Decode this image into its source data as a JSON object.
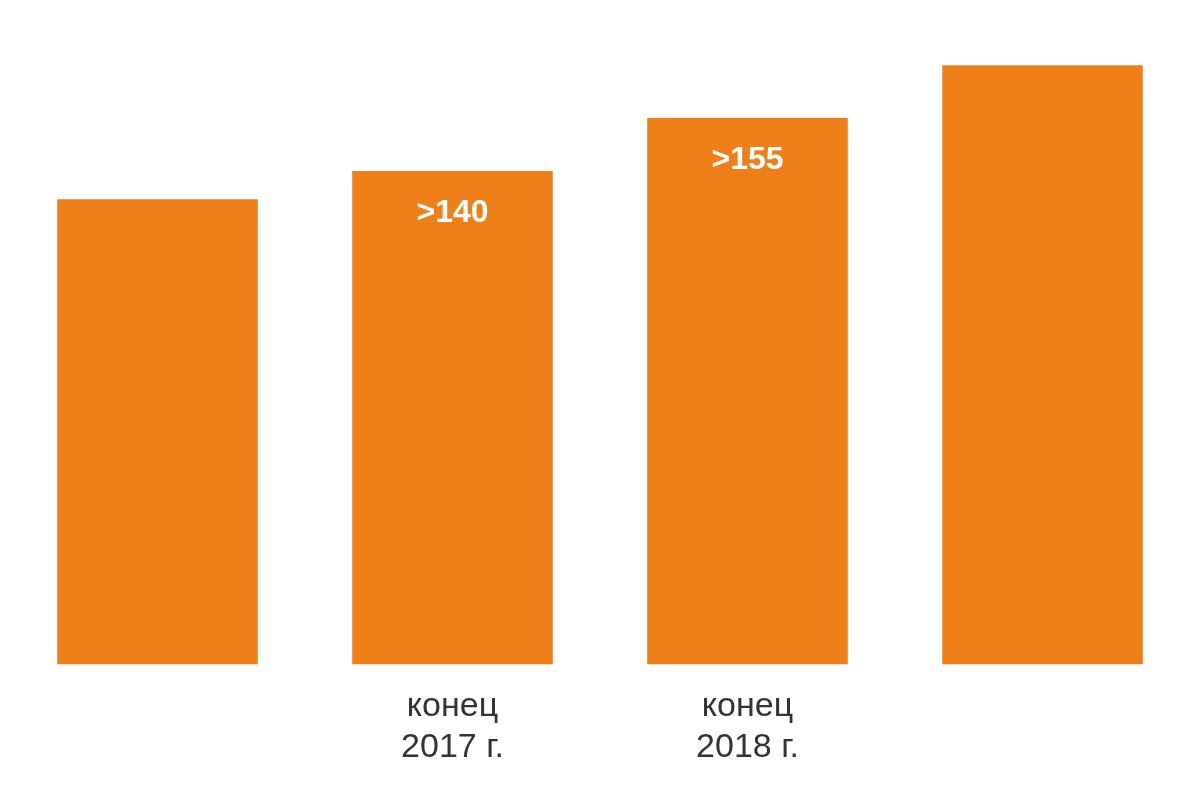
{
  "chart_data": {
    "type": "bar",
    "categories": [
      null,
      "конец 2017 г.",
      "конец 2018 г.",
      null
    ],
    "values": [
      132,
      140,
      155,
      170
    ],
    "value_labels": [
      null,
      ">140",
      ">155",
      null
    ],
    "color": "#ef8019"
  }
}
